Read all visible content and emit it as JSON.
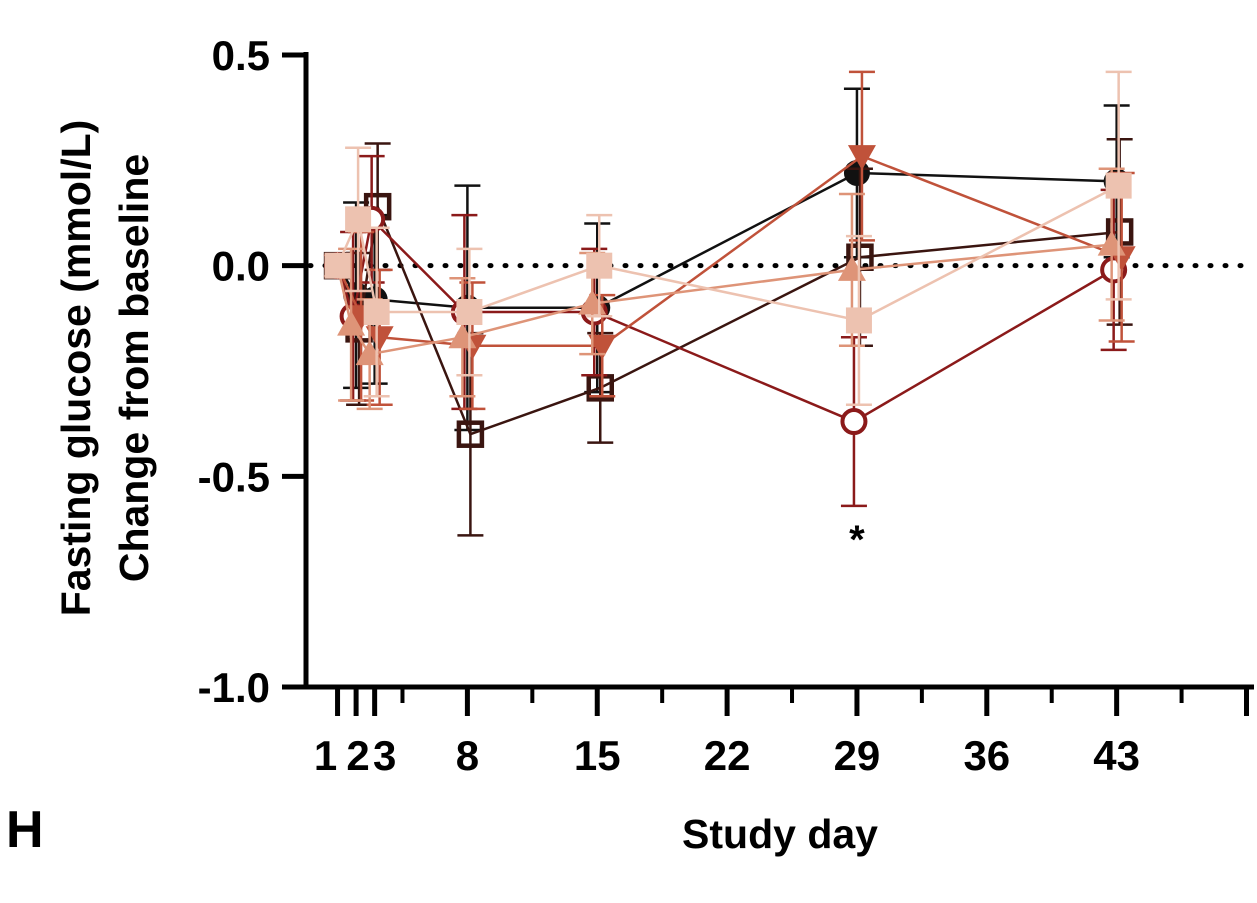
{
  "panel_label": "H",
  "chart_data": {
    "type": "line",
    "ylabel_line1": "Fasting glucose (mmol/L)",
    "ylabel_line2": "Change from baseline",
    "xlabel": "Study day",
    "ylim": [
      -1.0,
      0.5
    ],
    "xlim": [
      0,
      52
    ],
    "yticks": [
      -1.0,
      -0.5,
      0.0,
      0.5
    ],
    "ytick_labels": [
      "-1.0",
      "-0.5",
      "0.0",
      "0.5"
    ],
    "xticks_labeled": [
      1,
      2,
      3,
      8,
      15,
      22,
      29,
      36,
      43
    ],
    "xtick_labels": [
      "1",
      "2",
      "3",
      "8",
      "15",
      "22",
      "29",
      "36",
      "43"
    ],
    "reference_line_y": 0.0,
    "annotation": {
      "x": 29,
      "y": -0.63,
      "text": "*"
    },
    "series": [
      {
        "color": "#111111",
        "marker": "circle-filled",
        "x": [
          1,
          2,
          3,
          8,
          15,
          29,
          43
        ],
        "y": [
          0.0,
          -0.07,
          -0.08,
          -0.1,
          -0.1,
          0.22,
          0.2
        ],
        "err": [
          0.0,
          0.22,
          0.2,
          0.29,
          0.2,
          0.2,
          0.18
        ]
      },
      {
        "color": "#3a1510",
        "marker": "square-open",
        "x": [
          1,
          2,
          3,
          8,
          15,
          29,
          43
        ],
        "y": [
          0.0,
          -0.15,
          0.14,
          -0.4,
          -0.29,
          0.02,
          0.08
        ],
        "err": [
          0.0,
          0.18,
          0.15,
          0.24,
          0.13,
          0.21,
          0.22
        ]
      },
      {
        "color": "#8b1a1a",
        "marker": "circle-open",
        "x": [
          1,
          2,
          3,
          8,
          15,
          29,
          43
        ],
        "y": [
          0.0,
          -0.12,
          0.11,
          -0.11,
          -0.11,
          -0.37,
          -0.01
        ],
        "err": [
          0.0,
          0.2,
          0.15,
          0.23,
          0.15,
          0.2,
          0.19
        ]
      },
      {
        "color": "#c0523a",
        "marker": "triangle-down-filled",
        "x": [
          1,
          2,
          3,
          8,
          15,
          29,
          43
        ],
        "y": [
          0.0,
          -0.12,
          -0.17,
          -0.19,
          -0.19,
          0.26,
          0.02
        ],
        "err": [
          0.0,
          0.2,
          0.16,
          0.15,
          0.12,
          0.2,
          0.2
        ]
      },
      {
        "color": "#de9478",
        "marker": "triangle-up-filled",
        "x": [
          1,
          2,
          3,
          8,
          15,
          29,
          43
        ],
        "y": [
          0.0,
          -0.14,
          -0.21,
          -0.17,
          -0.09,
          -0.01,
          0.05
        ],
        "err": [
          0.0,
          0.18,
          0.13,
          0.14,
          0.12,
          0.18,
          0.18
        ]
      },
      {
        "color": "#edc2b0",
        "marker": "square-filled",
        "x": [
          1,
          2,
          3,
          8,
          15,
          29,
          43
        ],
        "y": [
          0.0,
          0.11,
          -0.11,
          -0.11,
          0.0,
          -0.13,
          0.19
        ],
        "err": [
          0.0,
          0.17,
          0.2,
          0.15,
          0.12,
          0.2,
          0.27
        ]
      }
    ]
  }
}
